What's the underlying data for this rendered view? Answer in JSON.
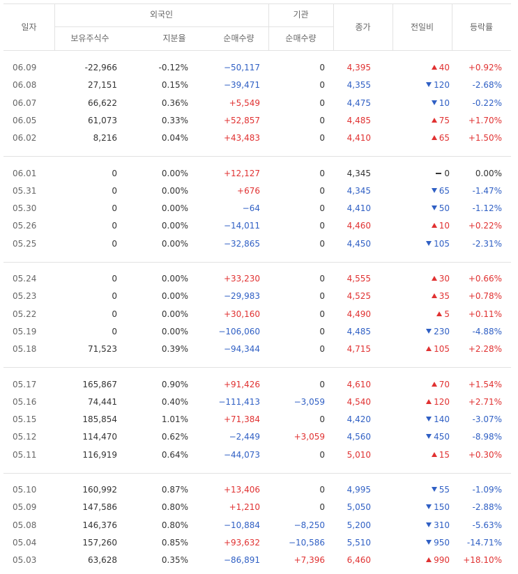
{
  "header": {
    "date": "일자",
    "foreign": "외국인",
    "holdings": "보유주식수",
    "ratio": "지분율",
    "foreign_net": "순매수량",
    "institution": "기관",
    "inst_net": "순매수량",
    "close": "종가",
    "change": "전일비",
    "rate": "등락률"
  },
  "groups": [
    [
      {
        "date": "06.09",
        "holdings": "-22,966",
        "ratio": "-0.12%",
        "foreign_net": "−50,117",
        "inst_net": "0",
        "close": "4,395",
        "change": "40",
        "direction": "up",
        "rate": "+0.92%"
      },
      {
        "date": "06.08",
        "holdings": "27,151",
        "ratio": "0.15%",
        "foreign_net": "−39,471",
        "inst_net": "0",
        "close": "4,355",
        "change": "120",
        "direction": "down",
        "rate": "-2.68%"
      },
      {
        "date": "06.07",
        "holdings": "66,622",
        "ratio": "0.36%",
        "foreign_net": "+5,549",
        "inst_net": "0",
        "close": "4,475",
        "change": "10",
        "direction": "down",
        "rate": "-0.22%"
      },
      {
        "date": "06.05",
        "holdings": "61,073",
        "ratio": "0.33%",
        "foreign_net": "+52,857",
        "inst_net": "0",
        "close": "4,485",
        "change": "75",
        "direction": "up",
        "rate": "+1.70%"
      },
      {
        "date": "06.02",
        "holdings": "8,216",
        "ratio": "0.04%",
        "foreign_net": "+43,483",
        "inst_net": "0",
        "close": "4,410",
        "change": "65",
        "direction": "up",
        "rate": "+1.50%"
      }
    ],
    [
      {
        "date": "06.01",
        "holdings": "0",
        "ratio": "0.00%",
        "foreign_net": "+12,127",
        "inst_net": "0",
        "close": "4,345",
        "change": "0",
        "direction": "flat",
        "rate": "0.00%"
      },
      {
        "date": "05.31",
        "holdings": "0",
        "ratio": "0.00%",
        "foreign_net": "+676",
        "inst_net": "0",
        "close": "4,345",
        "change": "65",
        "direction": "down",
        "rate": "-1.47%"
      },
      {
        "date": "05.30",
        "holdings": "0",
        "ratio": "0.00%",
        "foreign_net": "−64",
        "inst_net": "0",
        "close": "4,410",
        "change": "50",
        "direction": "down",
        "rate": "-1.12%"
      },
      {
        "date": "05.26",
        "holdings": "0",
        "ratio": "0.00%",
        "foreign_net": "−14,011",
        "inst_net": "0",
        "close": "4,460",
        "change": "10",
        "direction": "up",
        "rate": "+0.22%"
      },
      {
        "date": "05.25",
        "holdings": "0",
        "ratio": "0.00%",
        "foreign_net": "−32,865",
        "inst_net": "0",
        "close": "4,450",
        "change": "105",
        "direction": "down",
        "rate": "-2.31%"
      }
    ],
    [
      {
        "date": "05.24",
        "holdings": "0",
        "ratio": "0.00%",
        "foreign_net": "+33,230",
        "inst_net": "0",
        "close": "4,555",
        "change": "30",
        "direction": "up",
        "rate": "+0.66%"
      },
      {
        "date": "05.23",
        "holdings": "0",
        "ratio": "0.00%",
        "foreign_net": "−29,983",
        "inst_net": "0",
        "close": "4,525",
        "change": "35",
        "direction": "up",
        "rate": "+0.78%"
      },
      {
        "date": "05.22",
        "holdings": "0",
        "ratio": "0.00%",
        "foreign_net": "+30,160",
        "inst_net": "0",
        "close": "4,490",
        "change": "5",
        "direction": "up",
        "rate": "+0.11%"
      },
      {
        "date": "05.19",
        "holdings": "0",
        "ratio": "0.00%",
        "foreign_net": "−106,060",
        "inst_net": "0",
        "close": "4,485",
        "change": "230",
        "direction": "down",
        "rate": "-4.88%"
      },
      {
        "date": "05.18",
        "holdings": "71,523",
        "ratio": "0.39%",
        "foreign_net": "−94,344",
        "inst_net": "0",
        "close": "4,715",
        "change": "105",
        "direction": "up",
        "rate": "+2.28%"
      }
    ],
    [
      {
        "date": "05.17",
        "holdings": "165,867",
        "ratio": "0.90%",
        "foreign_net": "+91,426",
        "inst_net": "0",
        "close": "4,610",
        "change": "70",
        "direction": "up",
        "rate": "+1.54%"
      },
      {
        "date": "05.16",
        "holdings": "74,441",
        "ratio": "0.40%",
        "foreign_net": "−111,413",
        "inst_net": "−3,059",
        "close": "4,540",
        "change": "120",
        "direction": "up",
        "rate": "+2.71%"
      },
      {
        "date": "05.15",
        "holdings": "185,854",
        "ratio": "1.01%",
        "foreign_net": "+71,384",
        "inst_net": "0",
        "close": "4,420",
        "change": "140",
        "direction": "down",
        "rate": "-3.07%"
      },
      {
        "date": "05.12",
        "holdings": "114,470",
        "ratio": "0.62%",
        "foreign_net": "−2,449",
        "inst_net": "+3,059",
        "close": "4,560",
        "change": "450",
        "direction": "down",
        "rate": "-8.98%"
      },
      {
        "date": "05.11",
        "holdings": "116,919",
        "ratio": "0.64%",
        "foreign_net": "−44,073",
        "inst_net": "0",
        "close": "5,010",
        "change": "15",
        "direction": "up",
        "rate": "+0.30%"
      }
    ],
    [
      {
        "date": "05.10",
        "holdings": "160,992",
        "ratio": "0.87%",
        "foreign_net": "+13,406",
        "inst_net": "0",
        "close": "4,995",
        "change": "55",
        "direction": "down",
        "rate": "-1.09%"
      },
      {
        "date": "05.09",
        "holdings": "147,586",
        "ratio": "0.80%",
        "foreign_net": "+1,210",
        "inst_net": "0",
        "close": "5,050",
        "change": "150",
        "direction": "down",
        "rate": "-2.88%"
      },
      {
        "date": "05.08",
        "holdings": "146,376",
        "ratio": "0.80%",
        "foreign_net": "−10,884",
        "inst_net": "−8,250",
        "close": "5,200",
        "change": "310",
        "direction": "down",
        "rate": "-5.63%"
      },
      {
        "date": "05.04",
        "holdings": "157,260",
        "ratio": "0.85%",
        "foreign_net": "+93,632",
        "inst_net": "−10,586",
        "close": "5,510",
        "change": "950",
        "direction": "down",
        "rate": "-14.71%"
      },
      {
        "date": "05.03",
        "holdings": "63,628",
        "ratio": "0.35%",
        "foreign_net": "−86,891",
        "inst_net": "+7,396",
        "close": "6,460",
        "change": "990",
        "direction": "up",
        "rate": "+18.10%"
      }
    ]
  ]
}
